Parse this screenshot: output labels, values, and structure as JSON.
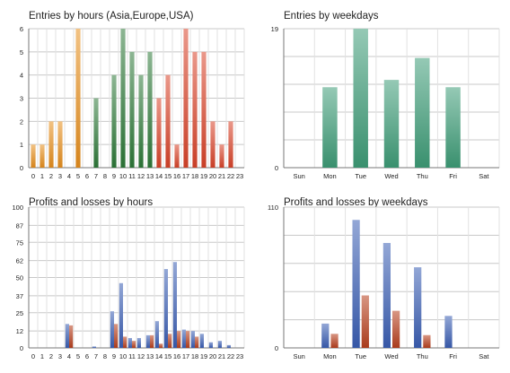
{
  "colors": {
    "grid": "#c8c8c8",
    "axis": "#777777",
    "orange": "#e8901e",
    "green": "#2f7a3a",
    "red": "#d9442a",
    "teal": "#3e9c78",
    "blue": "#3b5fb4",
    "loss": "#b8401e"
  },
  "chart_data": [
    {
      "id": "hours",
      "type": "bar",
      "title": "Entries by hours (Asia,Europe,USA)",
      "categories": [
        "0",
        "1",
        "2",
        "3",
        "4",
        "5",
        "6",
        "7",
        "8",
        "9",
        "10",
        "11",
        "12",
        "13",
        "14",
        "15",
        "16",
        "17",
        "18",
        "19",
        "20",
        "21",
        "22",
        "23"
      ],
      "series": [
        {
          "values": [
            1,
            1,
            2,
            2,
            0,
            6,
            0,
            3,
            0,
            4,
            6,
            5,
            4,
            5,
            3,
            4,
            1,
            6,
            5,
            5,
            2,
            1,
            2,
            0
          ]
        }
      ],
      "bar_colors": [
        "orange",
        "orange",
        "orange",
        "orange",
        "orange",
        "orange",
        "green",
        "green",
        "green",
        "green",
        "green",
        "green",
        "green",
        "green",
        "red",
        "red",
        "red",
        "red",
        "red",
        "red",
        "red",
        "red",
        "red",
        "red"
      ],
      "yticks": [
        0,
        1,
        2,
        3,
        4,
        5,
        6
      ],
      "ylim": [
        0,
        6
      ],
      "grid": true
    },
    {
      "id": "weekdays",
      "type": "bar",
      "title": "Entries by weekdays",
      "categories": [
        "Sun",
        "Mon",
        "Tue",
        "Wed",
        "Thu",
        "Fri",
        "Sat"
      ],
      "series": [
        {
          "values": [
            0,
            11,
            19,
            12,
            15,
            11,
            0
          ]
        }
      ],
      "yticks": [
        0,
        19
      ],
      "ylim": [
        0,
        19
      ],
      "grid": true
    },
    {
      "id": "pl_hours",
      "type": "bar",
      "title": "Profits and losses by hours",
      "categories": [
        "0",
        "1",
        "2",
        "3",
        "4",
        "5",
        "6",
        "7",
        "8",
        "9",
        "10",
        "11",
        "12",
        "13",
        "14",
        "15",
        "16",
        "17",
        "18",
        "19",
        "20",
        "21",
        "22",
        "23"
      ],
      "series": [
        {
          "values": [
            0,
            0,
            0,
            0,
            17,
            0,
            0,
            1,
            0,
            26,
            46,
            7,
            7,
            9,
            19,
            56,
            61,
            13,
            12,
            10,
            4,
            5,
            2,
            0
          ]
        },
        {
          "values": [
            0,
            0,
            0,
            0,
            16,
            0,
            0,
            0,
            0,
            17,
            8,
            5,
            0,
            9,
            3,
            10,
            12,
            12,
            8,
            0,
            0,
            0,
            0,
            0
          ]
        }
      ],
      "yticks": [
        0,
        12,
        25,
        37,
        50,
        62,
        75,
        87,
        100
      ],
      "ylim": [
        0,
        100
      ],
      "grid": true
    },
    {
      "id": "pl_weekdays",
      "type": "bar",
      "title": "Profits and losses by weekdays",
      "categories": [
        "Sun",
        "Mon",
        "Tue",
        "Wed",
        "Thu",
        "Fri",
        "Sat"
      ],
      "series": [
        {
          "values": [
            0,
            19,
            100,
            82,
            63,
            25,
            0
          ]
        },
        {
          "values": [
            0,
            11,
            41,
            29,
            10,
            0,
            0
          ]
        }
      ],
      "yticks": [
        0,
        110
      ],
      "ylim": [
        0,
        110
      ],
      "grid": true
    }
  ]
}
